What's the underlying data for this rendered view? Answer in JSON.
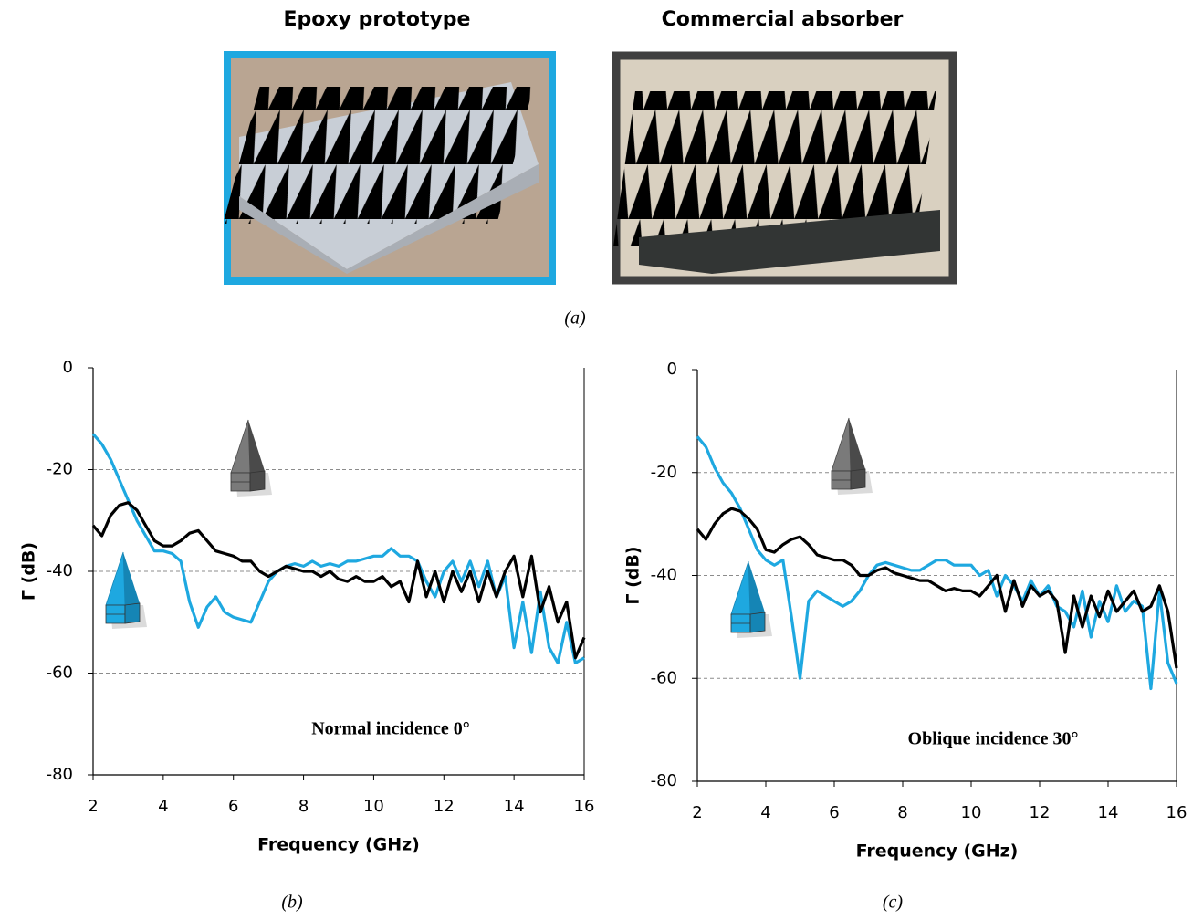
{
  "panel_a": {
    "titles": [
      "Epoxy prototype",
      "Commercial absorber"
    ],
    "caption": "(a)"
  },
  "chart_data": [
    {
      "type": "line",
      "caption": "(b)",
      "annotation": "Normal incidence 0°",
      "xlabel": "Frequency (GHz)",
      "ylabel": "Γ (dB)",
      "xlim": [
        2,
        16
      ],
      "ylim": [
        -80,
        0
      ],
      "xticks": [
        2,
        4,
        6,
        8,
        10,
        12,
        14,
        16
      ],
      "yticks": [
        0,
        -20,
        -40,
        -60,
        -80
      ],
      "grid": true,
      "x": [
        2,
        2.25,
        2.5,
        2.75,
        3,
        3.25,
        3.5,
        3.75,
        4,
        4.25,
        4.5,
        4.75,
        5,
        5.25,
        5.5,
        5.75,
        6,
        6.25,
        6.5,
        6.75,
        7,
        7.25,
        7.5,
        7.75,
        8,
        8.25,
        8.5,
        8.75,
        9,
        9.25,
        9.5,
        9.75,
        10,
        10.25,
        10.5,
        10.75,
        11,
        11.25,
        11.5,
        11.75,
        12,
        12.25,
        12.5,
        12.75,
        13,
        13.25,
        13.5,
        13.75,
        14,
        14.25,
        14.5,
        14.75,
        15,
        15.25,
        15.5,
        15.75,
        16
      ],
      "series": [
        {
          "color": "#1ea8e0",
          "values": [
            -13,
            -15,
            -18,
            -22,
            -26,
            -30,
            -33,
            -36,
            -36,
            -36.5,
            -38,
            -46,
            -51,
            -47,
            -45,
            -48,
            -49,
            -49.5,
            -50,
            -46,
            -42,
            -40,
            -39,
            -38.5,
            -39,
            -38,
            -39,
            -38.5,
            -39,
            -38,
            -38,
            -37.5,
            -37,
            -37,
            -35.5,
            -37,
            -37,
            -38,
            -42,
            -45,
            -40,
            -38,
            -42,
            -38,
            -43,
            -38,
            -45,
            -41,
            -55,
            -46,
            -56,
            -44,
            -55,
            -58,
            -50,
            -58,
            -57
          ]
        },
        {
          "color": "#000000",
          "values": [
            -31,
            -33,
            -29,
            -27,
            -26.5,
            -28,
            -31,
            -34,
            -35,
            -35,
            -34,
            -32.5,
            -32,
            -34,
            -36,
            -36.5,
            -37,
            -38,
            -38,
            -40,
            -41,
            -40,
            -39,
            -39.5,
            -40,
            -40,
            -41,
            -40,
            -41.5,
            -42,
            -41,
            -42,
            -42,
            -41,
            -43,
            -42,
            -46,
            -38,
            -45,
            -40,
            -46,
            -40,
            -44,
            -40,
            -46,
            -40,
            -45,
            -40,
            -37,
            -45,
            -37,
            -48,
            -43,
            -50,
            -46,
            -57,
            -53
          ]
        }
      ]
    },
    {
      "type": "line",
      "caption": "(c)",
      "annotation": "Oblique incidence 30°",
      "xlabel": "Frequency (GHz)",
      "ylabel": "Γ (dB)",
      "xlim": [
        2,
        16
      ],
      "ylim": [
        -80,
        0
      ],
      "xticks": [
        2,
        4,
        6,
        8,
        10,
        12,
        14,
        16
      ],
      "yticks": [
        0,
        -20,
        -40,
        -60,
        -80
      ],
      "grid": true,
      "x": [
        2,
        2.25,
        2.5,
        2.75,
        3,
        3.25,
        3.5,
        3.75,
        4,
        4.25,
        4.5,
        4.75,
        5,
        5.25,
        5.5,
        5.75,
        6,
        6.25,
        6.5,
        6.75,
        7,
        7.25,
        7.5,
        7.75,
        8,
        8.25,
        8.5,
        8.75,
        9,
        9.25,
        9.5,
        9.75,
        10,
        10.25,
        10.5,
        10.75,
        11,
        11.25,
        11.5,
        11.75,
        12,
        12.25,
        12.5,
        12.75,
        13,
        13.25,
        13.5,
        13.75,
        14,
        14.25,
        14.5,
        14.75,
        15,
        15.25,
        15.5,
        15.75,
        16
      ],
      "series": [
        {
          "color": "#1ea8e0",
          "values": [
            -13,
            -15,
            -19,
            -22,
            -24,
            -27,
            -31,
            -35,
            -37,
            -38,
            -37,
            -48,
            -60,
            -45,
            -43,
            -44,
            -45,
            -46,
            -45,
            -43,
            -40,
            -38,
            -37.5,
            -38,
            -38.5,
            -39,
            -39,
            -38,
            -37,
            -37,
            -38,
            -38,
            -38,
            -40,
            -39,
            -44,
            -40,
            -42,
            -45,
            -41,
            -44,
            -42,
            -46,
            -47,
            -50,
            -43,
            -52,
            -45,
            -49,
            -42,
            -47,
            -45,
            -46,
            -62,
            -43,
            -57,
            -61
          ]
        },
        {
          "color": "#000000",
          "values": [
            -31,
            -33,
            -30,
            -28,
            -27,
            -27.5,
            -29,
            -31,
            -35,
            -35.5,
            -34,
            -33,
            -32.5,
            -34,
            -36,
            -36.5,
            -37,
            -37,
            -38,
            -40,
            -40,
            -39,
            -38.5,
            -39.5,
            -40,
            -40.5,
            -41,
            -41,
            -42,
            -43,
            -42.5,
            -43,
            -43,
            -44,
            -42,
            -40,
            -47,
            -41,
            -46,
            -42,
            -44,
            -43,
            -45,
            -55,
            -44,
            -50,
            -44,
            -48,
            -43,
            -47,
            -45,
            -43,
            -47,
            -46,
            -42,
            -47,
            -58
          ]
        }
      ]
    }
  ]
}
